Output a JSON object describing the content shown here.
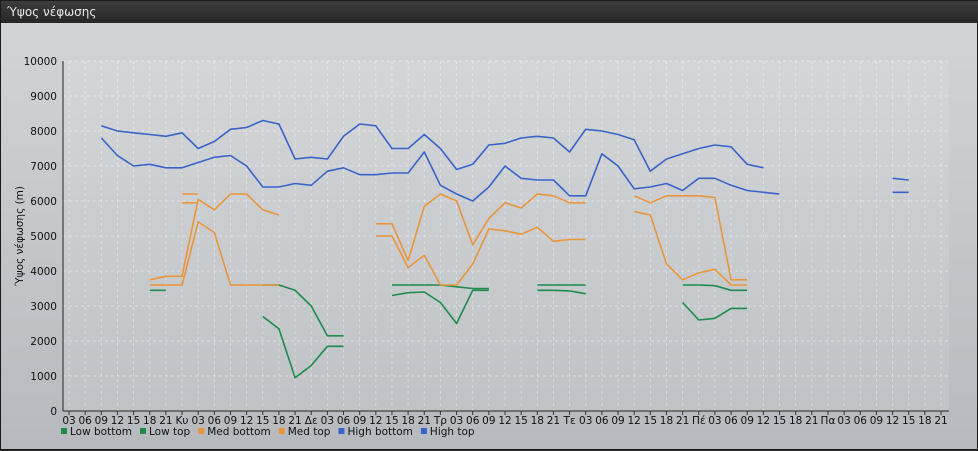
{
  "window": {
    "title": "Ύψος νέφωσης"
  },
  "chart_data": {
    "type": "line",
    "title": "Ύψος νέφωσης",
    "ylabel": "Ύψος νέφωσης (m)",
    "xlabel": "",
    "ylim": [
      0,
      10000
    ],
    "yticks": [
      0,
      1000,
      2000,
      3000,
      4000,
      5000,
      6000,
      7000,
      8000,
      9000,
      10000
    ],
    "xtick_step_hours": 3,
    "x_tick_labels": [
      "03",
      "06",
      "09",
      "12",
      "15",
      "18",
      "21",
      "Κυ",
      "03",
      "06",
      "09",
      "12",
      "15",
      "18",
      "21",
      "Δε",
      "03",
      "06",
      "09",
      "12",
      "15",
      "18",
      "21",
      "Τρ",
      "03",
      "06",
      "09",
      "12",
      "15",
      "18",
      "21",
      "Τε",
      "03",
      "06",
      "09",
      "12",
      "15",
      "18",
      "21",
      "Πέ",
      "03",
      "06",
      "09",
      "12",
      "15",
      "18",
      "21",
      "Πα",
      "03",
      "06",
      "09",
      "12",
      "15",
      "18",
      "21"
    ],
    "grid": true,
    "legend_position": "bottom-left",
    "series": [
      {
        "name": "Low bottom",
        "color": "#1e8a4e",
        "segments": [
          [
            [
              15,
              3450
            ],
            [
              18,
              3450
            ]
          ],
          [
            [
              36,
              3600
            ],
            [
              39,
              3600
            ],
            [
              42,
              3450
            ],
            [
              45,
              3000
            ],
            [
              48,
              2150
            ],
            [
              51,
              2150
            ]
          ],
          [
            [
              60,
              3600
            ],
            [
              63,
              3600
            ],
            [
              66,
              3600
            ],
            [
              69,
              3600
            ],
            [
              72,
              3550
            ],
            [
              75,
              3500
            ],
            [
              78,
              3500
            ]
          ],
          [
            [
              87,
              3600
            ],
            [
              90,
              3600
            ],
            [
              93,
              3600
            ],
            [
              96,
              3600
            ]
          ],
          [
            [
              114,
              3600
            ],
            [
              117,
              3600
            ],
            [
              120,
              3580
            ],
            [
              123,
              3450
            ],
            [
              126,
              3450
            ]
          ]
        ]
      },
      {
        "name": "Low top",
        "color": "#1e8a4e",
        "segments": [
          [
            [
              36,
              2700
            ],
            [
              39,
              2350
            ],
            [
              42,
              950
            ],
            [
              45,
              1300
            ],
            [
              48,
              1850
            ],
            [
              51,
              1850
            ]
          ],
          [
            [
              60,
              3300
            ],
            [
              63,
              3380
            ],
            [
              66,
              3400
            ],
            [
              69,
              3100
            ],
            [
              72,
              2500
            ],
            [
              75,
              3450
            ],
            [
              78,
              3450
            ]
          ],
          [
            [
              87,
              3450
            ],
            [
              90,
              3450
            ],
            [
              93,
              3430
            ],
            [
              96,
              3350
            ]
          ],
          [
            [
              114,
              3100
            ],
            [
              117,
              2600
            ],
            [
              120,
              2650
            ],
            [
              123,
              2930
            ],
            [
              126,
              2930
            ]
          ]
        ]
      },
      {
        "name": "Med bottom",
        "color": "#e8963c",
        "segments": [
          [
            [
              21,
              5950
            ],
            [
              24,
              5950
            ]
          ],
          [
            [
              15,
              3600
            ],
            [
              18,
              3600
            ],
            [
              21,
              3600
            ],
            [
              24,
              5400
            ],
            [
              27,
              5100
            ],
            [
              30,
              3600
            ],
            [
              33,
              3600
            ],
            [
              36,
              3600
            ],
            [
              39,
              3600
            ]
          ],
          [
            [
              57,
              5000
            ],
            [
              60,
              5000
            ],
            [
              63,
              4100
            ],
            [
              66,
              4450
            ],
            [
              69,
              3600
            ],
            [
              72,
              3600
            ],
            [
              75,
              4200
            ],
            [
              78,
              5200
            ],
            [
              81,
              5150
            ],
            [
              84,
              5050
            ],
            [
              87,
              5250
            ],
            [
              90,
              4850
            ],
            [
              93,
              4900
            ],
            [
              96,
              4900
            ]
          ],
          [
            [
              105,
              5700
            ],
            [
              108,
              5600
            ],
            [
              111,
              4200
            ],
            [
              114,
              3750
            ],
            [
              117,
              3950
            ],
            [
              120,
              4050
            ],
            [
              123,
              3600
            ],
            [
              126,
              3600
            ]
          ]
        ]
      },
      {
        "name": "Med top",
        "color": "#e8963c",
        "segments": [
          [
            [
              21,
              6200
            ],
            [
              24,
              6200
            ]
          ],
          [
            [
              15,
              3750
            ],
            [
              18,
              3850
            ],
            [
              21,
              3850
            ],
            [
              24,
              6050
            ],
            [
              27,
              5750
            ],
            [
              30,
              6200
            ],
            [
              33,
              6200
            ],
            [
              36,
              5750
            ],
            [
              39,
              5600
            ]
          ],
          [
            [
              57,
              5350
            ],
            [
              60,
              5350
            ],
            [
              63,
              4300
            ],
            [
              66,
              5850
            ],
            [
              69,
              6200
            ],
            [
              72,
              6000
            ],
            [
              75,
              4750
            ],
            [
              78,
              5500
            ],
            [
              81,
              5950
            ],
            [
              84,
              5800
            ],
            [
              87,
              6200
            ],
            [
              90,
              6150
            ],
            [
              93,
              5950
            ],
            [
              96,
              5950
            ]
          ],
          [
            [
              105,
              6150
            ],
            [
              108,
              5950
            ],
            [
              111,
              6150
            ],
            [
              114,
              6150
            ],
            [
              117,
              6150
            ],
            [
              120,
              6100
            ],
            [
              123,
              3750
            ],
            [
              126,
              3750
            ]
          ]
        ]
      },
      {
        "name": "High bottom",
        "color": "#3a62c8",
        "segments": [
          [
            [
              6,
              7800
            ],
            [
              9,
              7300
            ],
            [
              12,
              7000
            ],
            [
              15,
              7050
            ],
            [
              18,
              6950
            ],
            [
              21,
              6950
            ],
            [
              24,
              7100
            ],
            [
              27,
              7250
            ],
            [
              30,
              7300
            ],
            [
              33,
              7000
            ],
            [
              36,
              6400
            ],
            [
              39,
              6400
            ],
            [
              42,
              6500
            ],
            [
              45,
              6450
            ],
            [
              48,
              6850
            ],
            [
              51,
              6950
            ],
            [
              54,
              6750
            ],
            [
              57,
              6750
            ],
            [
              60,
              6800
            ],
            [
              63,
              6800
            ],
            [
              66,
              7400
            ],
            [
              69,
              6450
            ],
            [
              72,
              6200
            ],
            [
              75,
              6000
            ],
            [
              78,
              6400
            ],
            [
              81,
              7000
            ],
            [
              84,
              6650
            ],
            [
              87,
              6600
            ],
            [
              90,
              6600
            ],
            [
              93,
              6150
            ],
            [
              96,
              6150
            ],
            [
              99,
              7350
            ],
            [
              102,
              7000
            ],
            [
              105,
              6350
            ],
            [
              108,
              6400
            ],
            [
              111,
              6500
            ],
            [
              114,
              6300
            ],
            [
              117,
              6650
            ],
            [
              120,
              6650
            ],
            [
              123,
              6450
            ],
            [
              126,
              6300
            ],
            [
              129,
              6250
            ],
            [
              132,
              6200
            ]
          ],
          [
            [
              153,
              6250
            ],
            [
              156,
              6250
            ]
          ]
        ]
      },
      {
        "name": "High top",
        "color": "#3a62c8",
        "segments": [
          [
            [
              6,
              8150
            ],
            [
              9,
              8000
            ],
            [
              12,
              7950
            ],
            [
              15,
              7900
            ],
            [
              18,
              7850
            ],
            [
              21,
              7950
            ],
            [
              24,
              7500
            ],
            [
              27,
              7700
            ],
            [
              30,
              8050
            ],
            [
              33,
              8100
            ],
            [
              36,
              8300
            ],
            [
              39,
              8200
            ],
            [
              42,
              7200
            ],
            [
              45,
              7250
            ],
            [
              48,
              7200
            ],
            [
              51,
              7850
            ],
            [
              54,
              8200
            ],
            [
              57,
              8150
            ],
            [
              60,
              7500
            ],
            [
              63,
              7500
            ],
            [
              66,
              7900
            ],
            [
              69,
              7500
            ],
            [
              72,
              6900
            ],
            [
              75,
              7050
            ],
            [
              78,
              7600
            ],
            [
              81,
              7650
            ],
            [
              84,
              7800
            ],
            [
              87,
              7850
            ],
            [
              90,
              7800
            ],
            [
              93,
              7400
            ],
            [
              96,
              8050
            ],
            [
              99,
              8000
            ],
            [
              102,
              7900
            ],
            [
              105,
              7750
            ],
            [
              108,
              6850
            ],
            [
              111,
              7200
            ],
            [
              114,
              7350
            ],
            [
              117,
              7500
            ],
            [
              120,
              7600
            ],
            [
              123,
              7550
            ],
            [
              126,
              7050
            ],
            [
              129,
              6950
            ]
          ],
          [
            [
              153,
              6650
            ],
            [
              156,
              6600
            ]
          ]
        ]
      }
    ]
  }
}
